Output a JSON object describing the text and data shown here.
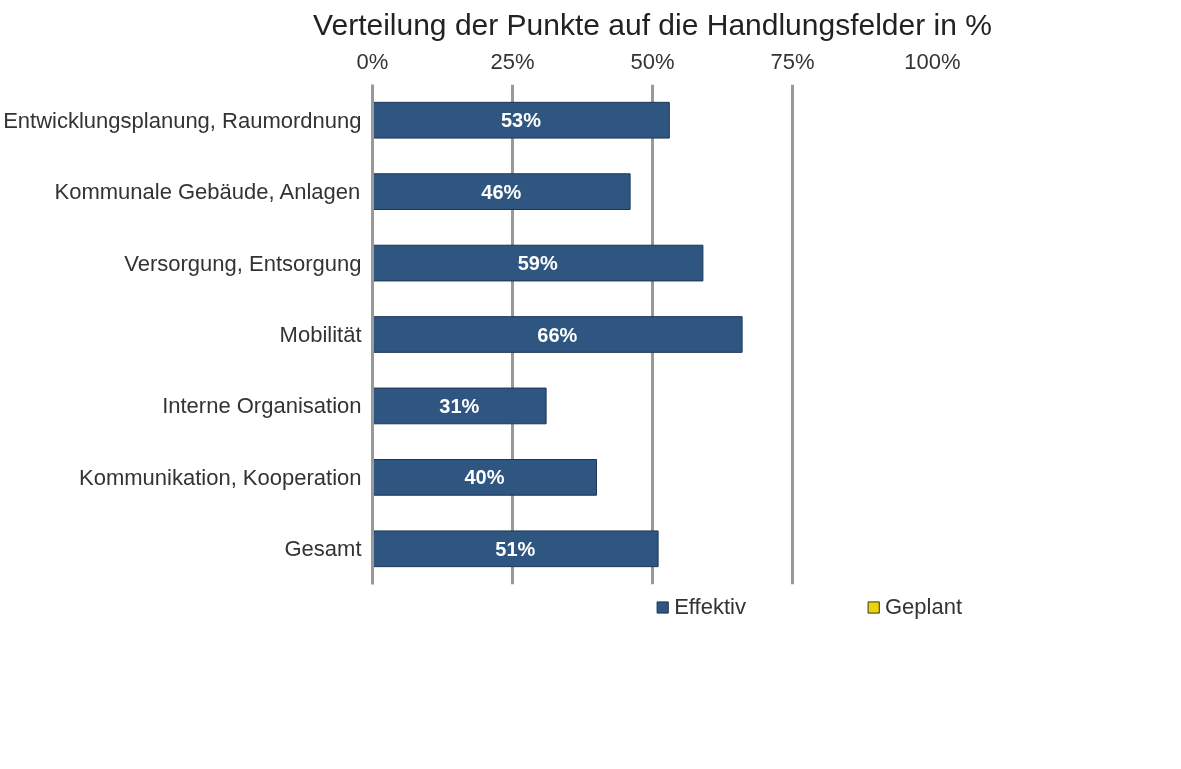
{
  "chart_data": {
    "type": "bar",
    "orientation": "horizontal",
    "title": "Verteilung der Punkte auf die Handlungsfelder in %",
    "categories": [
      "Entwicklungsplanung, Raumordnung",
      "Kommunale Gebäude, Anlagen",
      "Versorgung, Entsorgung",
      "Mobilität",
      "Interne Organisation",
      "Kommunikation, Kooperation",
      "Gesamt"
    ],
    "series": [
      {
        "name": "Effektiv",
        "color": "#2f5681",
        "values": [
          53,
          46,
          59,
          66,
          31,
          40,
          51
        ],
        "value_labels": [
          "53%",
          "46%",
          "59%",
          "66%",
          "31%",
          "40%",
          "51%"
        ]
      },
      {
        "name": "Geplant",
        "color": "#f2d200",
        "values": [
          null,
          null,
          null,
          null,
          null,
          null,
          null
        ]
      }
    ],
    "xlim": [
      0,
      100
    ],
    "xticks": [
      {
        "value": 0,
        "label": "0%"
      },
      {
        "value": 25,
        "label": "25%"
      },
      {
        "value": 50,
        "label": "50%"
      },
      {
        "value": 75,
        "label": "75%"
      },
      {
        "value": 100,
        "label": "100%"
      }
    ],
    "grid": "x",
    "legend": "bottom"
  }
}
